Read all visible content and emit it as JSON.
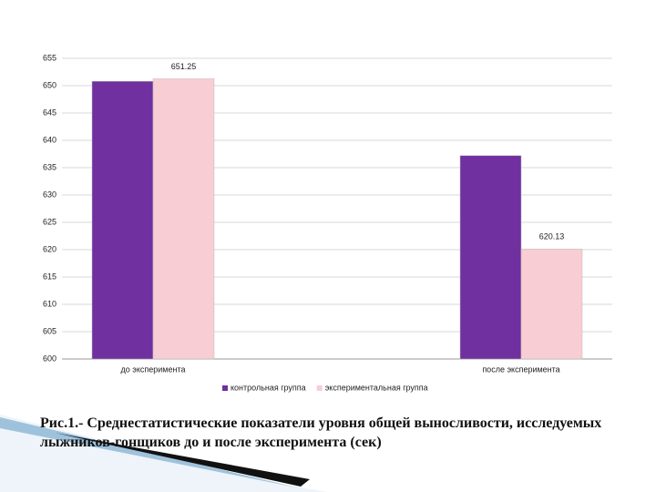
{
  "chart_data": {
    "type": "bar",
    "categories": [
      "до эксперимента",
      "после эксперимента"
    ],
    "series": [
      {
        "name": "контрольная группа",
        "color": "#7030a0",
        "values": [
          650.8,
          637.2
        ]
      },
      {
        "name": "экспериментальная группа",
        "color": "#f8cdd3",
        "values": [
          651.25,
          620.13
        ],
        "data_labels": true
      }
    ],
    "ylim": [
      600,
      655
    ],
    "yticks": [
      600,
      605,
      610,
      615,
      620,
      625,
      630,
      635,
      640,
      645,
      650,
      655
    ],
    "grid": true,
    "legend": "bottom",
    "caption": "Рис.1.-  Среднестатистические показатели уровня общей выносливости, исследуемых лыжников-гонщиков до и после эксперимента (сек)"
  }
}
